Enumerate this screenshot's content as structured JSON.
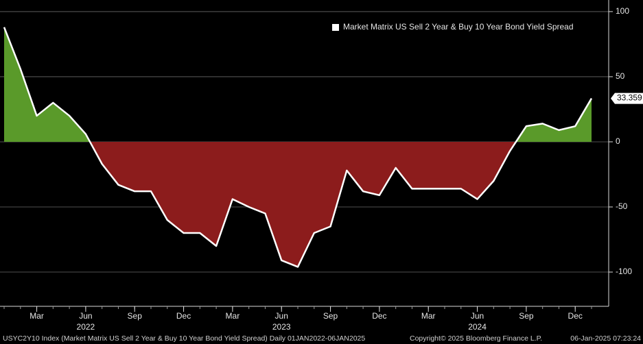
{
  "chart_data": {
    "type": "line",
    "legend": "Market Matrix US Sell 2 Year & Buy 10 Year Bond Yield Spread",
    "legend_position": "upper right",
    "categories": [
      "2022-01",
      "2022-02",
      "2022-03",
      "2022-04",
      "2022-05",
      "2022-06",
      "2022-07",
      "2022-08",
      "2022-09",
      "2022-10",
      "2022-11",
      "2022-12",
      "2023-01",
      "2023-02",
      "2023-03",
      "2023-04",
      "2023-05",
      "2023-06",
      "2023-07",
      "2023-08",
      "2023-09",
      "2023-10",
      "2023-11",
      "2023-12",
      "2024-01",
      "2024-02",
      "2024-03",
      "2024-04",
      "2024-05",
      "2024-06",
      "2024-07",
      "2024-08",
      "2024-09",
      "2024-10",
      "2024-11",
      "2024-12",
      "2025-01"
    ],
    "values": [
      88,
      56,
      20,
      30,
      20,
      6,
      -17,
      -33,
      -38,
      -38,
      -60,
      -70,
      -70,
      -80,
      -44,
      -50,
      -55,
      -91,
      -96,
      -70,
      -65,
      -22,
      -38,
      -41,
      -20,
      -36,
      -36,
      -36,
      -36,
      -44,
      -30,
      -7,
      12,
      14,
      9,
      12,
      33.359
    ],
    "value_labels": [
      null,
      null,
      null,
      null,
      null,
      null,
      null,
      null,
      null,
      null,
      null,
      null,
      null,
      null,
      null,
      null,
      null,
      null,
      null,
      null,
      null,
      null,
      null,
      null,
      null,
      null,
      null,
      null,
      null,
      null,
      null,
      null,
      null,
      null,
      null,
      null,
      "33.359"
    ],
    "line_color": "#ffffff",
    "positive_color": "#5a9a2a",
    "negative_color": "#8c1c1c",
    "ylim": [
      -126.3,
      108.9
    ],
    "yticks": [
      100,
      50,
      0,
      -50,
      -100
    ],
    "grid": true,
    "xticks": [
      {
        "value": "2022-03",
        "label": "Mar"
      },
      {
        "value": "2022-06",
        "label": "Jun"
      },
      {
        "value": "2022-09",
        "label": "Sep"
      },
      {
        "value": "2022-12",
        "label": "Dec"
      },
      {
        "value": "2023-03",
        "label": "Mar"
      },
      {
        "value": "2023-06",
        "label": "Jun"
      },
      {
        "value": "2023-09",
        "label": "Sep"
      },
      {
        "value": "2023-12",
        "label": "Dec"
      },
      {
        "value": "2024-03",
        "label": "Mar"
      },
      {
        "value": "2024-06",
        "label": "Jun"
      },
      {
        "value": "2024-09",
        "label": "Sep"
      },
      {
        "value": "2024-12",
        "label": "Dec"
      }
    ],
    "year_ticks": [
      {
        "value": "2022-06",
        "label": "2022"
      },
      {
        "value": "2023-06",
        "label": "2023"
      },
      {
        "value": "2024-06",
        "label": "2024"
      }
    ]
  },
  "footer": {
    "description": "USYC2Y10 Index (Market Matrix US Sell 2 Year & Buy 10 Year Bond Yield Spread)  Daily 01JAN2022-06JAN2025",
    "copyright": "Copyright© 2025 Bloomberg Finance L.P.",
    "timestamp": "06-Jan-2025 07:23:24"
  }
}
